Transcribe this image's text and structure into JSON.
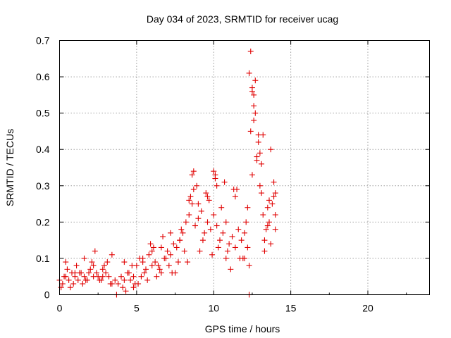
{
  "chart_data": {
    "type": "scatter",
    "title": "Day 034 of 2023, SRMTID for receiver ucag",
    "xlabel": "GPS time / hours",
    "ylabel": "SRMTID / TECUs",
    "xlim": [
      0,
      24
    ],
    "ylim": [
      0,
      0.7
    ],
    "xticks": [
      0,
      5,
      10,
      15,
      20
    ],
    "yticks": [
      0,
      0.1,
      0.2,
      0.3,
      0.4,
      0.5,
      0.6,
      0.7
    ],
    "ytick_labels": [
      "0",
      "0.1",
      "0.2",
      "0.3",
      "0.4",
      "0.5",
      "0.6",
      "0.7"
    ],
    "grid": true,
    "marker": "+",
    "color": "#e00000",
    "series": [
      {
        "name": "SRMTID",
        "x": [
          0.0,
          0.2,
          0.4,
          0.6,
          0.8,
          1.0,
          1.2,
          1.4,
          1.6,
          1.8,
          2.0,
          2.2,
          2.4,
          2.6,
          2.8,
          3.0,
          3.2,
          3.4,
          3.6,
          3.8,
          4.0,
          4.2,
          4.4,
          4.6,
          4.8,
          5.0,
          5.2,
          5.4,
          5.6,
          5.8,
          6.0,
          6.2,
          6.4,
          6.6,
          6.8,
          7.0,
          7.2,
          7.4,
          7.6,
          7.8,
          8.0,
          8.2,
          8.4,
          8.6,
          8.8,
          9.0,
          9.2,
          9.4,
          9.6,
          9.8,
          10.0,
          10.2,
          10.4,
          10.6,
          10.8,
          11.0,
          11.2,
          11.4,
          11.6,
          11.8,
          12.0,
          12.2,
          12.4,
          12.6,
          12.8,
          13.0,
          13.2,
          13.4,
          13.6,
          13.8,
          14.0,
          0.1,
          0.5,
          0.9,
          1.3,
          1.7,
          2.1,
          2.5,
          2.9,
          3.3,
          4.1,
          4.5,
          4.9,
          5.3,
          5.7,
          6.1,
          6.5,
          6.9,
          7.3,
          7.7,
          8.1,
          8.5,
          8.9,
          9.3,
          9.7,
          10.1,
          10.5,
          10.9,
          11.3,
          11.7,
          12.1,
          12.3,
          12.5,
          12.7,
          12.9,
          13.1,
          13.3,
          13.5,
          13.7,
          13.9,
          0.3,
          0.7,
          1.1,
          1.5,
          1.9,
          2.3,
          2.7,
          3.1,
          4.3,
          4.7,
          5.1,
          5.5,
          5.9,
          6.3,
          6.7,
          7.1,
          7.5,
          7.9,
          8.3,
          8.6,
          8.7,
          9.1,
          9.5,
          9.9,
          10.0,
          10.3,
          10.7,
          11.1,
          11.5,
          11.9,
          12.3,
          12.4,
          12.5,
          12.6,
          12.7,
          12.9,
          13.0,
          13.1,
          13.3,
          13.5,
          13.7,
          13.9,
          14.0,
          0.4,
          1.0,
          1.6,
          2.2,
          2.8,
          3.4,
          4.2,
          4.8,
          5.4,
          6.0,
          6.6,
          7.2,
          7.8,
          8.4,
          8.7,
          9.0,
          9.6,
          10.1,
          10.2,
          10.8,
          11.4,
          12.0,
          12.2,
          12.5,
          12.6,
          12.8,
          13.2,
          13.6,
          14.0,
          3.7,
          12.3
        ],
        "y": [
          0.04,
          0.03,
          0.05,
          0.04,
          0.06,
          0.05,
          0.04,
          0.06,
          0.05,
          0.04,
          0.07,
          0.05,
          0.06,
          0.04,
          0.05,
          0.06,
          0.05,
          0.03,
          0.04,
          0.03,
          0.05,
          0.04,
          0.06,
          0.04,
          0.05,
          0.08,
          0.1,
          0.09,
          0.07,
          0.11,
          0.12,
          0.09,
          0.08,
          0.13,
          0.1,
          0.12,
          0.11,
          0.14,
          0.13,
          0.15,
          0.17,
          0.2,
          0.22,
          0.25,
          0.19,
          0.21,
          0.23,
          0.17,
          0.2,
          0.18,
          0.22,
          0.19,
          0.15,
          0.17,
          0.2,
          0.14,
          0.16,
          0.13,
          0.18,
          0.15,
          0.17,
          0.24,
          0.45,
          0.52,
          0.38,
          0.3,
          0.22,
          0.18,
          0.2,
          0.25,
          0.22,
          0.02,
          0.07,
          0.03,
          0.06,
          0.04,
          0.09,
          0.05,
          0.08,
          0.03,
          0.02,
          0.06,
          0.03,
          0.05,
          0.04,
          0.13,
          0.07,
          0.1,
          0.06,
          0.09,
          0.12,
          0.27,
          0.3,
          0.15,
          0.26,
          0.33,
          0.24,
          0.12,
          0.29,
          0.1,
          0.2,
          0.61,
          0.57,
          0.5,
          0.42,
          0.36,
          0.15,
          0.19,
          0.14,
          0.27,
          0.05,
          0.02,
          0.08,
          0.03,
          0.06,
          0.12,
          0.04,
          0.09,
          0.01,
          0.08,
          0.03,
          0.06,
          0.14,
          0.05,
          0.16,
          0.08,
          0.06,
          0.18,
          0.09,
          0.33,
          0.29,
          0.12,
          0.28,
          0.11,
          0.34,
          0.13,
          0.31,
          0.07,
          0.29,
          0.1,
          0.08,
          0.67,
          0.56,
          0.48,
          0.59,
          0.44,
          0.39,
          0.28,
          0.12,
          0.24,
          0.4,
          0.31,
          0.18,
          0.09,
          0.06,
          0.1,
          0.08,
          0.07,
          0.11,
          0.09,
          0.02,
          0.1,
          0.08,
          0.06,
          0.17,
          0.15,
          0.26,
          0.34,
          0.25,
          0.27,
          0.32,
          0.3,
          0.1,
          0.27,
          0.1,
          0.13,
          0.33,
          0.55,
          0.37,
          0.44,
          0.26,
          0.28,
          0.0,
          0.0
        ]
      }
    ]
  }
}
